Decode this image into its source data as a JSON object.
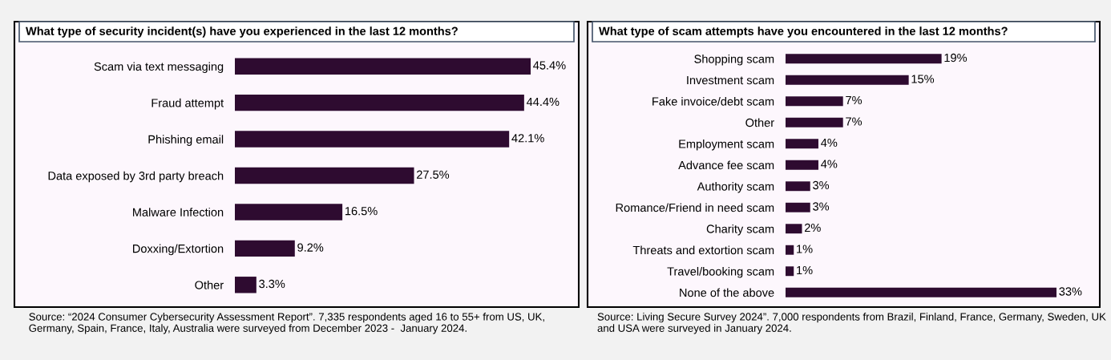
{
  "chart_data": [
    {
      "type": "bar",
      "orientation": "horizontal",
      "title": "What type of security incident(s) have you experienced in the last 12 months?",
      "categories": [
        "Scam via text messaging",
        "Fraud attempt",
        "Phishing email",
        "Data exposed by 3rd party breach",
        "Malware Infection",
        "Doxxing/Extortion",
        "Other"
      ],
      "values": [
        45.4,
        44.4,
        42.1,
        27.5,
        16.5,
        9.2,
        3.3
      ],
      "value_labels": [
        "45.4%",
        "44.4%",
        "42.1%",
        "27.5%",
        "16.5%",
        "9.2%",
        "3.3%"
      ],
      "color": "#2e0b30",
      "grid": false,
      "legend": false,
      "annotations": [
        "Source: “2024 Consumer Cybersecurity Assessment Report”. 7,335 respondents aged 16 to 55+ from US, UK, Germany, Spain, France, Italy, Australia were surveyed from December 2023 -  January 2024."
      ]
    },
    {
      "type": "bar",
      "orientation": "horizontal",
      "title": "What type of scam attempts have you encountered in the last 12 months?",
      "categories": [
        "Shopping scam",
        "Investment scam",
        "Fake invoice/debt scam",
        "Other",
        "Employment scam",
        "Advance fee scam",
        "Authority scam",
        "Romance/Friend in need scam",
        "Charity scam",
        "Threats and extortion scam",
        "Travel/booking scam",
        "None of the above"
      ],
      "values": [
        19,
        15,
        7,
        7,
        4,
        4,
        3,
        3,
        2,
        1,
        1,
        33
      ],
      "value_labels": [
        "19%",
        "15%",
        "7%",
        "7%",
        "4%",
        "4%",
        "3%",
        "3%",
        "2%",
        "1%",
        "1%",
        "33%"
      ],
      "color": "#2e0b30",
      "grid": false,
      "legend": false,
      "annotations": [
        "Source: Living Secure Survey 2024”. 7,000 respondents from Brazil, Finland, France, Germany, Sweden, UK and USA were surveyed in January 2024."
      ]
    }
  ]
}
